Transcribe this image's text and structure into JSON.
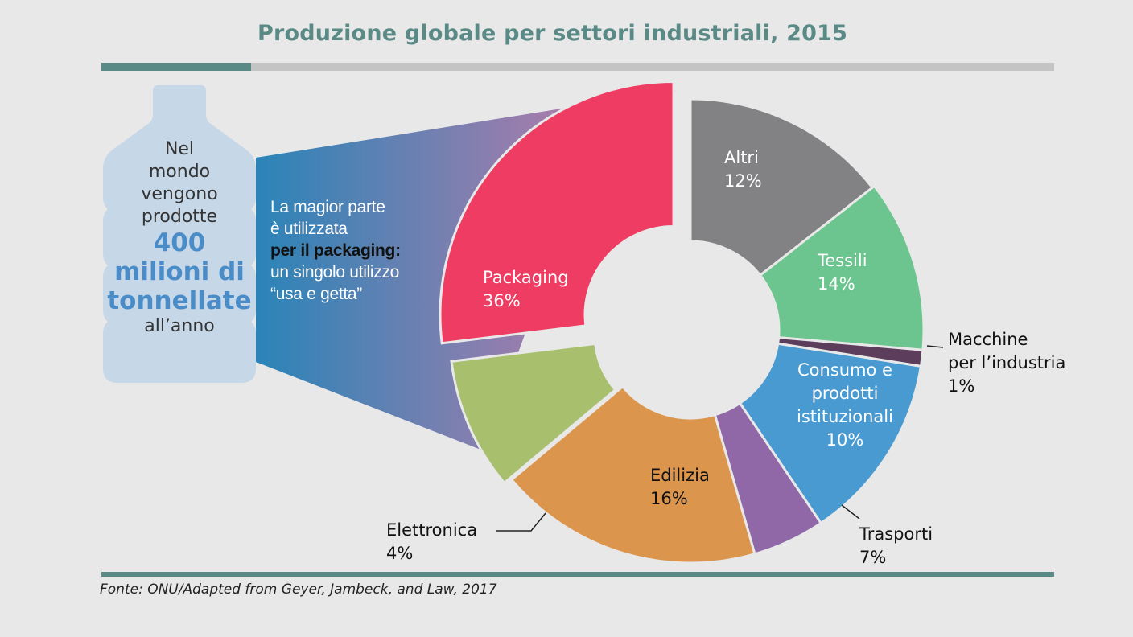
{
  "title": "Produzione globale per settori industriali, 2015",
  "source": "Fonte: ONU/Adapted from Geyer, Jambeck, and Law, 2017",
  "bottle": {
    "lines_top": [
      "Nel",
      "mondo",
      "vengono",
      "prodotte"
    ],
    "highlight": [
      "400",
      "milioni di",
      "tonnellate"
    ],
    "line_bottom": "all’anno"
  },
  "callout": {
    "line1": "La magior parte",
    "line2": "è utilizzata",
    "line3_bold": "per il packaging:",
    "line4": "un singolo utilizzo",
    "line5": "“usa e getta”"
  },
  "chart_data": {
    "type": "pie",
    "title": "Produzione globale per settori industriali, 2015",
    "slices": [
      {
        "name": "Packaging",
        "label": "36%",
        "value": 36,
        "color": "#ef3c62"
      },
      {
        "name": "Altri",
        "label": "12%",
        "value": 12,
        "color": "#828284"
      },
      {
        "name": "Tessili",
        "label": "14%",
        "value": 14,
        "color": "#6cc58f"
      },
      {
        "name": "Macchine per l’industria",
        "label": "1%",
        "value": 1,
        "color": "#5c3d5c"
      },
      {
        "name": "Consumo e prodotti istituzionali",
        "label": "10%",
        "value": 10,
        "color": "#4a9ad2"
      },
      {
        "name": "Trasporti",
        "label": "7%",
        "value": 7,
        "color": "#9068a8"
      },
      {
        "name": "Edilizia",
        "label": "16%",
        "value": 16,
        "color": "#dc954c"
      },
      {
        "name": "Elettronica",
        "label": "4%",
        "value": 4,
        "color": "#a8c06e"
      }
    ],
    "label_lines": {
      "Altri": [
        "Altri"
      ],
      "Tessili": [
        "Tessili"
      ],
      "Macchine per l’industria": [
        "Macchine",
        "per l’industria"
      ],
      "Consumo e prodotti istituzionali": [
        "Consumo e",
        "prodotti",
        "istituzionali"
      ],
      "Trasporti": [
        "Trasporti"
      ],
      "Edilizia": [
        "Edilizia"
      ],
      "Elettronica": [
        "Elettronica"
      ],
      "Packaging": [
        "Packaging"
      ]
    },
    "colors": {
      "bottle": "#c6d7e8",
      "gradient_start": "#2a84b8",
      "gradient_end": "#d67aa7"
    }
  }
}
